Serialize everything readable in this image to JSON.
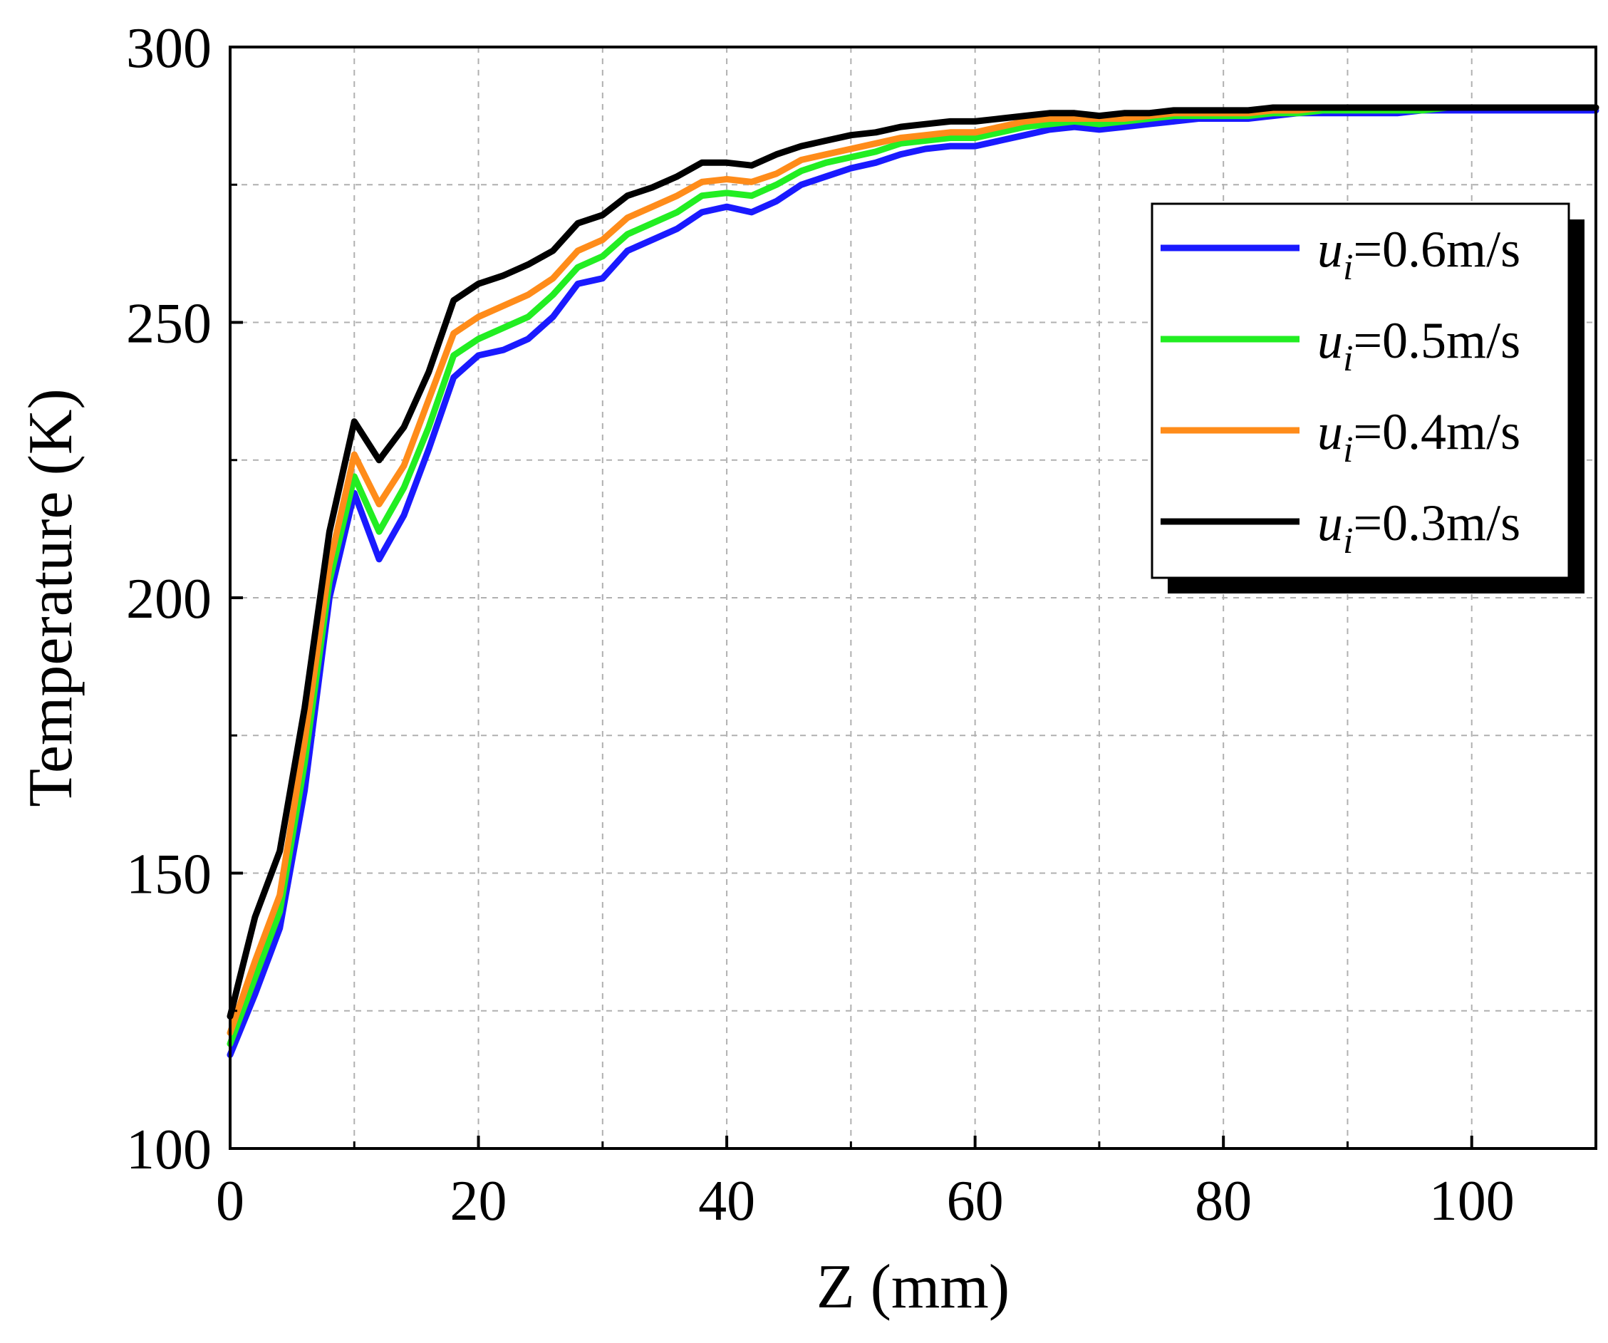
{
  "chart_data": {
    "type": "line",
    "title": "",
    "xlabel": "Z (mm)",
    "ylabel": "Temperature (K)",
    "xlim": [
      0,
      110
    ],
    "ylim": [
      100,
      300
    ],
    "xticks": [
      0,
      20,
      40,
      60,
      80,
      100
    ],
    "yticks": [
      100,
      150,
      200,
      250,
      300
    ],
    "grid": true,
    "legend_position": "right",
    "x": [
      0,
      2,
      4,
      6,
      8,
      10,
      12,
      14,
      16,
      18,
      20,
      22,
      24,
      26,
      28,
      30,
      32,
      34,
      36,
      38,
      40,
      42,
      44,
      46,
      48,
      50,
      52,
      54,
      56,
      58,
      60,
      62,
      64,
      66,
      68,
      70,
      72,
      74,
      76,
      78,
      80,
      82,
      84,
      86,
      88,
      90,
      92,
      94,
      96,
      98,
      100,
      102,
      104,
      106,
      108,
      110
    ],
    "series": [
      {
        "name_var": "u",
        "name_sub": "i",
        "name_rest": "=0.6m/s",
        "color": "#1a1aff",
        "values": [
          117,
          128,
          140,
          165,
          200,
          219,
          207,
          215,
          227,
          240,
          244,
          245,
          247,
          251,
          257,
          258,
          263,
          265,
          267,
          270,
          271,
          270,
          272,
          275,
          276.5,
          278,
          279,
          280.5,
          281.5,
          282,
          282,
          283,
          284,
          285,
          285.5,
          285,
          285.5,
          286,
          286.5,
          287,
          287,
          287,
          287.5,
          288,
          288,
          288,
          288,
          288,
          288.5,
          288.5,
          288.5,
          288.5,
          288.5,
          288.5,
          288.5,
          288.5
        ]
      },
      {
        "name_var": "u",
        "name_sub": "i",
        "name_rest": "=0.5m/s",
        "color": "#22ee22",
        "values": [
          119,
          131,
          143,
          170,
          203,
          222,
          212,
          220,
          231,
          244,
          247,
          249,
          251,
          255,
          260,
          262,
          266,
          268,
          270,
          273,
          273.5,
          273,
          275,
          277.5,
          279,
          280,
          281,
          282.5,
          283,
          283.5,
          283.5,
          284.5,
          285.5,
          286,
          286.5,
          286,
          286.5,
          287,
          287.5,
          287.5,
          287.5,
          287.5,
          288,
          288,
          288.5,
          288.5,
          288.5,
          288.5,
          288.5,
          289,
          289,
          289,
          289,
          289,
          289,
          289
        ]
      },
      {
        "name_var": "u",
        "name_sub": "i",
        "name_rest": "=0.4m/s",
        "color": "#ff8c1a",
        "values": [
          121,
          134,
          146,
          174,
          206,
          226,
          217,
          224,
          236,
          248,
          251,
          253,
          255,
          258,
          263,
          265,
          269,
          271,
          273,
          275.5,
          276,
          275.5,
          277,
          279.5,
          280.5,
          281.5,
          282.5,
          283.5,
          284,
          284.5,
          284.5,
          285.5,
          286.5,
          287,
          287,
          287,
          287,
          287.5,
          288,
          288,
          288,
          288,
          288.5,
          288.5,
          289,
          289,
          289,
          289,
          289,
          289,
          289,
          289,
          289,
          289,
          289,
          289
        ]
      },
      {
        "name_var": "u",
        "name_sub": "i",
        "name_rest": "=0.3m/s",
        "color": "#000000",
        "values": [
          124,
          142,
          154,
          180,
          212,
          232,
          225,
          231,
          241,
          254,
          257,
          258.5,
          260.5,
          263,
          268,
          269.5,
          273,
          274.5,
          276.5,
          279,
          279,
          278.5,
          280.5,
          282,
          283,
          284,
          284.5,
          285.5,
          286,
          286.5,
          286.5,
          287,
          287.5,
          288,
          288,
          287.5,
          288,
          288,
          288.5,
          288.5,
          288.5,
          288.5,
          289,
          289,
          289,
          289,
          289,
          289,
          289,
          289,
          289,
          289,
          289,
          289,
          289,
          289
        ]
      }
    ]
  }
}
